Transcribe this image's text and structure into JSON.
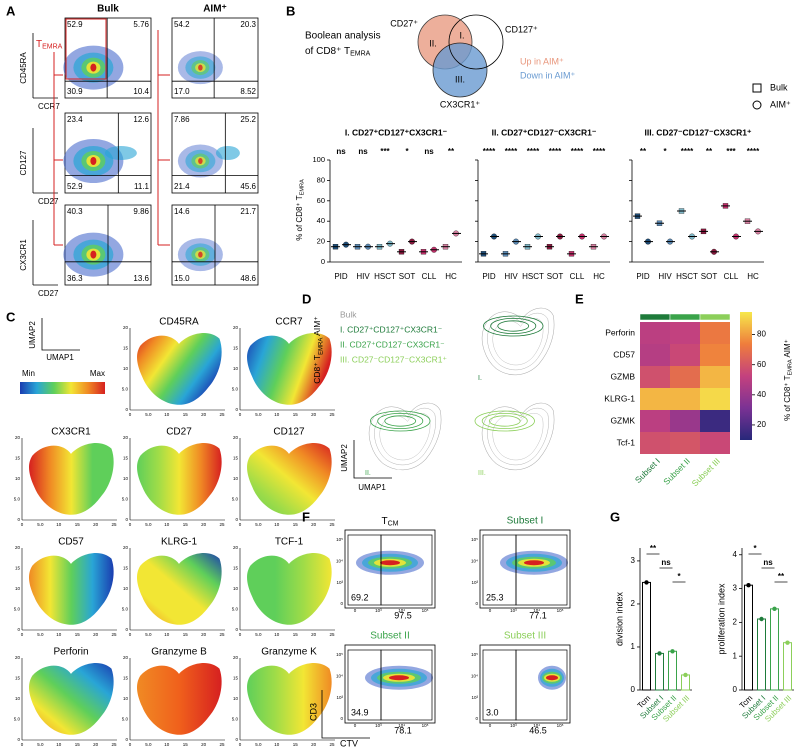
{
  "figure": {
    "panel_labels": [
      "A",
      "B",
      "C",
      "D",
      "E",
      "F",
      "G"
    ],
    "A": {
      "columns": [
        "Bulk",
        "AIM⁺"
      ],
      "gate": {
        "text": "T",
        "sub": "EMRA"
      },
      "rows": [
        {
          "y_label": "CD45RA",
          "x_label": "CCR7",
          "bulk": [
            "52.9",
            "5.76",
            "30.9",
            "10.4"
          ],
          "aim": [
            "54.2",
            "20.3",
            "17.0",
            "8.52"
          ]
        },
        {
          "y_label": "CD127",
          "x_label": "CD27",
          "bulk": [
            "23.4",
            "12.6",
            "52.9",
            "11.1"
          ],
          "aim": [
            "7.86",
            "25.2",
            "21.4",
            "45.6"
          ]
        },
        {
          "y_label": "CX3CR1",
          "x_label": "CD27",
          "bulk": [
            "40.3",
            "9.86",
            "36.3",
            "13.6"
          ],
          "aim": [
            "14.6",
            "21.7",
            "15.0",
            "48.6"
          ]
        }
      ]
    },
    "B": {
      "title_line1": "Boolean analysis",
      "title_line2": {
        "text": "of CD8⁺ T",
        "sub": "EMRA"
      },
      "venn": {
        "sets": [
          "CD27⁺",
          "CD127⁺",
          "CX3CR1⁺"
        ],
        "regions": [
          "I.",
          "II.",
          "III."
        ],
        "legend": [
          "Up in AIM⁺",
          "Down in AIM⁺"
        ],
        "colors": [
          "#e8957a",
          "#6a9bd1"
        ]
      },
      "legend": [
        "Bulk",
        "AIM⁺"
      ],
      "y_label": {
        "text": "% of CD8⁺ T",
        "sub": "EMRA"
      },
      "ylim": [
        0,
        100
      ],
      "yticks": [
        0,
        20,
        40,
        60,
        80,
        100
      ],
      "categories": [
        "PID",
        "HIV",
        "HSCT",
        "SOT",
        "CLL",
        "HC"
      ],
      "colors": [
        "#1f4e79",
        "#5b8ab5",
        "#7fb8c8",
        "#8b1a3f",
        "#c2306b",
        "#d67fa0"
      ],
      "subplots": [
        {
          "title": "I. CD27⁺CD127⁺CX3CR1⁻",
          "significance": [
            "ns",
            "ns",
            "***",
            "*",
            "ns",
            "**"
          ],
          "bulk": [
            15,
            15,
            15,
            10,
            10,
            15
          ],
          "aim": [
            17,
            15,
            18,
            20,
            12,
            28
          ]
        },
        {
          "title": "II. CD27⁺CD127⁻CX3CR1⁻",
          "significance": [
            "****",
            "****",
            "****",
            "****",
            "****",
            "****"
          ],
          "bulk": [
            8,
            8,
            15,
            15,
            8,
            15
          ],
          "aim": [
            25,
            20,
            25,
            25,
            25,
            25
          ]
        },
        {
          "title": "III. CD27⁻CD127⁻CX3CR1⁺",
          "significance": [
            "**",
            "*",
            "****",
            "**",
            "***",
            "****"
          ],
          "bulk": [
            45,
            38,
            50,
            30,
            55,
            40
          ],
          "aim": [
            20,
            20,
            25,
            10,
            25,
            30
          ]
        }
      ]
    },
    "C": {
      "axis_y": "UMAP2",
      "axis_x": "UMAP1",
      "scale_min": "Min",
      "scale_max": "Max",
      "x_ticks": [
        "0",
        "5.0",
        "10",
        "15",
        "20",
        "25"
      ],
      "y_ticks": [
        "0",
        "5.0",
        "10",
        "15",
        "20"
      ],
      "plots": [
        "CD45RA",
        "CCR7",
        "CX3CR1",
        "CD27",
        "CD127",
        "CD57",
        "KLRG-1",
        "TCF-1",
        "Perforin",
        "Granzyme B",
        "Granzyme K"
      ]
    },
    "D": {
      "legend": [
        "Bulk",
        "I. CD27⁺CD127⁺CX3CR1⁻",
        "II. CD27⁺CD127⁻CX3CR1⁻",
        "III. CD27⁻CD127⁻CX3CR1⁺"
      ],
      "colors": [
        "#9a9a9a",
        "#1e7b3a",
        "#3aa34a",
        "#8ccf5a"
      ],
      "y_label": {
        "text": "CD8⁺ T",
        "sub": "EMRA",
        "suffix": " AIM⁺"
      },
      "axis_y": "UMAP2",
      "axis_x": "UMAP1",
      "plot_labels": [
        "I.",
        "II.",
        "III."
      ]
    },
    "E": {
      "rows": [
        "Perforin",
        "CD57",
        "GZMB",
        "KLRG-1",
        "GZMK",
        "Tcf-1"
      ],
      "columns": [
        "Subset I",
        "Subset II",
        "Subset III"
      ],
      "column_colors": [
        "#1e7b3a",
        "#3aa34a",
        "#8ccf5a"
      ],
      "values": [
        [
          50,
          52,
          72
        ],
        [
          48,
          55,
          75
        ],
        [
          58,
          68,
          85
        ],
        [
          85,
          85,
          92
        ],
        [
          50,
          40,
          15
        ],
        [
          58,
          60,
          55
        ]
      ],
      "clim": [
        10,
        95
      ],
      "cticks": [
        20,
        40,
        60,
        80
      ],
      "colorbar_label": {
        "text": "% of CD8⁺ T",
        "sub": "EMRA",
        "suffix": " AIM⁺"
      }
    },
    "F": {
      "titles": [
        {
          "text": "T",
          "sub": "CM"
        },
        "Subset I",
        "Subset II",
        "Subset III"
      ],
      "title_colors": [
        "#000000",
        "#1e7b3a",
        "#3aa34a",
        "#8ccf5a"
      ],
      "gates": [
        [
          "69.2",
          "97.5"
        ],
        [
          "25.3",
          "77.1"
        ],
        [
          "34.9",
          "78.1"
        ],
        [
          "3.0",
          "46.5"
        ]
      ],
      "y_ticks": [
        "10⁵",
        "10⁴",
        "10³",
        "0"
      ],
      "x_ticks": [
        "0",
        "10³",
        "10⁴",
        "10⁵"
      ],
      "axis_y": "CD3",
      "axis_x": "CTV"
    },
    "G": {
      "categories": [
        "Tcm",
        "Subset I",
        "Subset II",
        "Subset III"
      ],
      "colors": [
        "#000000",
        "#1e7b3a",
        "#3aa34a",
        "#8ccf5a"
      ],
      "plots": [
        {
          "y_label": "division index",
          "ylim": [
            0,
            3.3
          ],
          "yticks": [
            0,
            1,
            2,
            3
          ],
          "values": [
            2.5,
            0.85,
            0.9,
            0.35
          ],
          "significance": [
            "**",
            "ns",
            "*"
          ]
        },
        {
          "y_label": "proliferation index",
          "ylim": [
            0,
            4.2
          ],
          "yticks": [
            0,
            1,
            2,
            3,
            4
          ],
          "values": [
            3.1,
            2.1,
            2.4,
            1.4
          ],
          "significance": [
            "*",
            "ns",
            "**"
          ]
        }
      ]
    }
  }
}
